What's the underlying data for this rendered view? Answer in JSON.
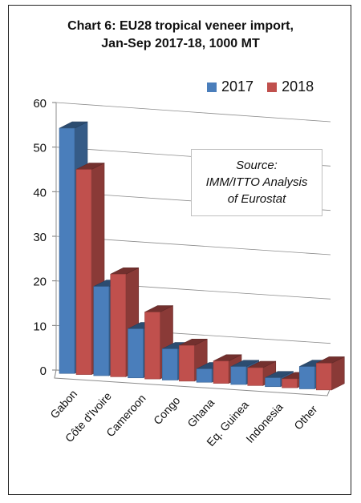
{
  "chart_data": {
    "type": "bar",
    "title_lines": [
      "Chart 6: EU28 tropical veneer import,",
      "Jan-Sep 2017-18, 1000 MT"
    ],
    "xlabel": "",
    "ylabel": "",
    "ylim": [
      0,
      60
    ],
    "yticks": [
      "0",
      "10",
      "20",
      "30",
      "40",
      "50",
      "60"
    ],
    "categories": [
      "Gabon",
      "Côte d'Ivoire",
      "Cameroon",
      "Congo",
      "Ghana",
      "Eq. Guinea",
      "Indonesia",
      "Other"
    ],
    "series": [
      {
        "name": "2017",
        "color": "#4a7ebb",
        "values": [
          55,
          20,
          11,
          7,
          3,
          4,
          2,
          5
        ]
      },
      {
        "name": "2018",
        "color": "#c0504d",
        "values": [
          46,
          23,
          15,
          8,
          5,
          4,
          2,
          6
        ]
      }
    ],
    "grid": true,
    "legend_position": "top-right",
    "annotation_lines": [
      "Source:",
      "IMM/ITTO Analysis",
      "of Eurostat"
    ]
  }
}
